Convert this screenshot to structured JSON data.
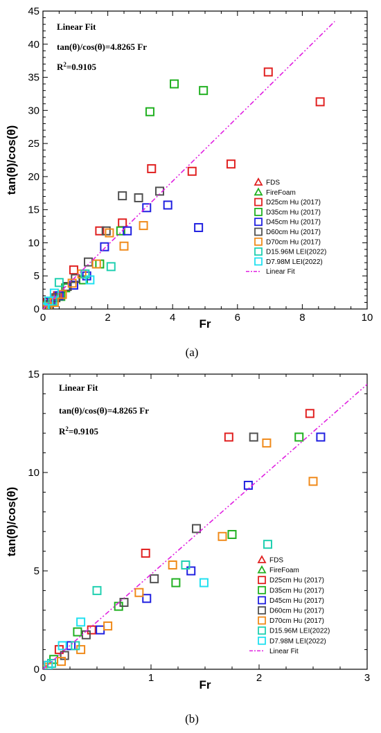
{
  "chart_data": [
    {
      "panel": "a",
      "type": "scatter",
      "caption": "(a)",
      "xlabel": "Fr",
      "ylabel": "tan(θ)/cos(θ)",
      "xlim": [
        0,
        10
      ],
      "ylim": [
        0,
        45
      ],
      "xticks": [
        0,
        2,
        4,
        6,
        8,
        10
      ],
      "yticks": [
        0,
        5,
        10,
        15,
        20,
        25,
        30,
        35,
        40,
        45
      ],
      "annotations": {
        "title": "Linear Fit",
        "equation": "tan(θ)/cos(θ)=4.8265 Fr",
        "r2_prefix": "R",
        "r2_sup": "2",
        "r2_value": "=0.9105"
      },
      "legend_position": "right",
      "series": [
        {
          "name": "FDS",
          "marker": "triangle",
          "color": "#e02020",
          "x": [],
          "y": []
        },
        {
          "name": "FireFoam",
          "marker": "triangle",
          "color": "#20b020",
          "x": [],
          "y": []
        },
        {
          "name": "D25cm Hu (2017)",
          "marker": "square",
          "color": "#e02020",
          "x": [
            0.05,
            0.15,
            0.45,
            0.95,
            1.75,
            2.45,
            3.35,
            4.6,
            5.8,
            6.95,
            8.55
          ],
          "y": [
            0.2,
            1.0,
            2.0,
            5.9,
            11.8,
            13.0,
            21.2,
            20.8,
            21.9,
            35.8,
            31.3
          ]
        },
        {
          "name": "D35cm Hu (2017)",
          "marker": "square",
          "color": "#20b020",
          "x": [
            0.1,
            0.55,
            0.7,
            1.25,
            1.75,
            2.4,
            3.3,
            4.05,
            4.95
          ],
          "y": [
            0.5,
            1.9,
            3.2,
            4.4,
            6.8,
            11.8,
            29.8,
            34.0,
            33.0
          ],
          "x_extra": [],
          "y_extra": []
        },
        {
          "name": "D45cm Hu (2017)",
          "marker": "square",
          "color": "#2020e0",
          "x": [
            0.25,
            0.5,
            0.95,
            1.35,
            1.9,
            2.6,
            3.2,
            3.85,
            4.8
          ],
          "y": [
            1.2,
            2.0,
            3.6,
            5.0,
            9.4,
            11.8,
            15.3,
            15.7,
            12.3
          ]
        },
        {
          "name": "D60cm Hu (2017)",
          "marker": "square",
          "color": "#505050",
          "x": [
            0.2,
            0.4,
            0.75,
            1.0,
            1.4,
            1.95,
            2.45,
            2.95,
            3.6
          ],
          "y": [
            0.7,
            1.7,
            3.4,
            4.6,
            7.1,
            11.8,
            17.1,
            16.8,
            17.8
          ]
        },
        {
          "name": "D70cm Hu (2017)",
          "marker": "square",
          "color": "#f08a1a",
          "x": [
            0.0,
            0.05,
            0.15,
            0.35,
            0.6,
            0.9,
            1.2,
            1.65,
            2.05,
            2.5,
            3.1
          ],
          "y": [
            0.0,
            0.1,
            0.4,
            1.0,
            2.2,
            3.9,
            5.3,
            6.8,
            11.5,
            9.5,
            12.6
          ]
        },
        {
          "name": "D15.96M LEI(2022)",
          "marker": "square",
          "color": "#20d0b0",
          "x": [
            0.08,
            0.3,
            0.5,
            1.3,
            2.1
          ],
          "y": [
            0.3,
            1.2,
            4.0,
            5.3,
            6.4
          ]
        },
        {
          "name": "D7.98M LEI(2022)",
          "marker": "square",
          "color": "#20e0f0",
          "x": [
            0.05,
            0.18,
            0.35,
            1.45
          ],
          "y": [
            0.2,
            1.2,
            2.4,
            4.4
          ]
        },
        {
          "name": "Linear Fit",
          "marker": "line",
          "color": "#e020e0",
          "slope": 4.8265,
          "x_range": [
            0,
            9
          ]
        }
      ]
    },
    {
      "panel": "b",
      "type": "scatter",
      "caption": "(b)",
      "xlabel": "Fr",
      "ylabel": "tan(θ)/cos(θ)",
      "xlim": [
        0,
        3
      ],
      "ylim": [
        0,
        15
      ],
      "xticks": [
        0,
        1,
        2,
        3
      ],
      "yticks": [
        0,
        5,
        10,
        15
      ],
      "annotations": {
        "title": "Linear Fit",
        "equation": "tan(θ)/cos(θ)=4.8265 Fr",
        "r2_prefix": "R",
        "r2_sup": "2",
        "r2_value": "=0.9105"
      },
      "legend_position": "right",
      "series": [
        {
          "name": "FDS",
          "marker": "triangle",
          "color": "#e02020",
          "x": [],
          "y": []
        },
        {
          "name": "FireFoam",
          "marker": "triangle",
          "color": "#20b020",
          "x": [],
          "y": []
        },
        {
          "name": "D25cm Hu (2017)",
          "marker": "square",
          "color": "#e02020",
          "x": [
            0.05,
            0.15,
            0.45,
            0.95,
            1.72,
            2.47
          ],
          "y": [
            0.2,
            1.0,
            2.0,
            5.9,
            11.8,
            13.0
          ]
        },
        {
          "name": "D35cm Hu (2017)",
          "marker": "square",
          "color": "#20b020",
          "x": [
            0.1,
            0.32,
            0.7,
            1.23,
            1.75,
            2.37
          ],
          "y": [
            0.5,
            1.9,
            3.2,
            4.4,
            6.85,
            11.8
          ]
        },
        {
          "name": "D45cm Hu (2017)",
          "marker": "square",
          "color": "#2020e0",
          "x": [
            0.26,
            0.53,
            0.96,
            1.37,
            1.9,
            2.57
          ],
          "y": [
            1.2,
            2.0,
            3.6,
            5.0,
            9.35,
            11.8
          ]
        },
        {
          "name": "D60cm Hu (2017)",
          "marker": "square",
          "color": "#505050",
          "x": [
            0.2,
            0.4,
            0.75,
            1.03,
            1.42,
            1.95
          ],
          "y": [
            0.7,
            1.75,
            3.4,
            4.6,
            7.15,
            11.8
          ]
        },
        {
          "name": "D70cm Hu (2017)",
          "marker": "square",
          "color": "#f08a1a",
          "x": [
            0.0,
            0.05,
            0.17,
            0.35,
            0.6,
            0.89,
            1.2,
            1.66,
            2.07,
            2.5
          ],
          "y": [
            0.0,
            0.1,
            0.4,
            1.0,
            2.2,
            3.9,
            5.3,
            6.75,
            11.5,
            9.55
          ]
        },
        {
          "name": "D15.96M LEI(2022)",
          "marker": "square",
          "color": "#20d0b0",
          "x": [
            0.08,
            0.3,
            0.5,
            1.32,
            2.08
          ],
          "y": [
            0.3,
            1.2,
            4.0,
            5.3,
            6.35
          ]
        },
        {
          "name": "D7.98M LEI(2022)",
          "marker": "square",
          "color": "#20e0f0",
          "x": [
            0.05,
            0.18,
            0.35,
            1.49
          ],
          "y": [
            0.2,
            1.2,
            2.4,
            4.4
          ]
        },
        {
          "name": "Linear Fit",
          "marker": "line",
          "color": "#e020e0",
          "slope": 4.8265,
          "x_range": [
            0,
            3
          ]
        }
      ]
    }
  ]
}
